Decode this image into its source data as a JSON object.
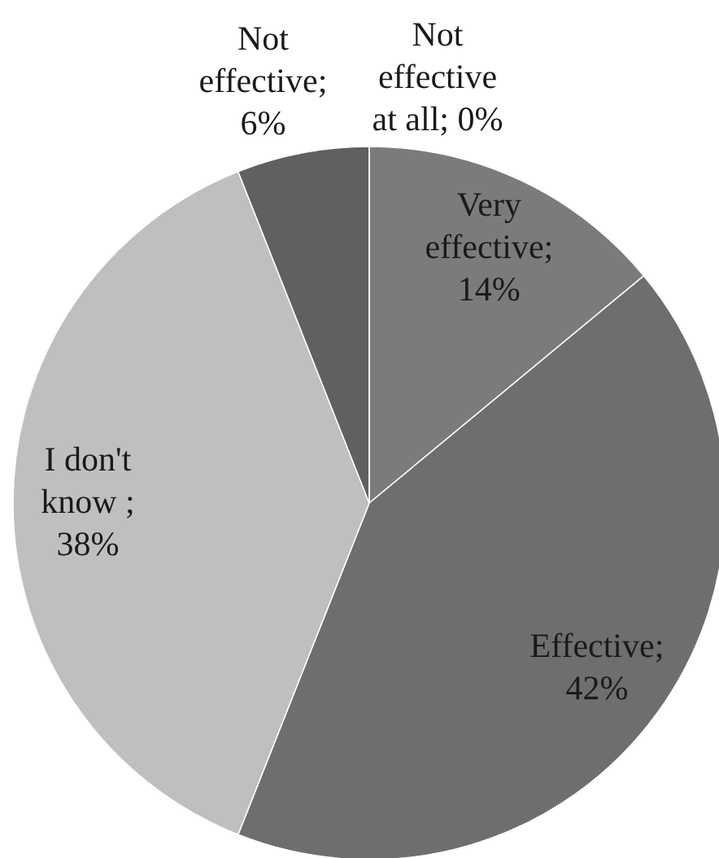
{
  "chart_data": {
    "type": "pie",
    "categories": [
      null,
      null,
      null,
      null,
      null
    ],
    "values": [
      14,
      42,
      38,
      6,
      0
    ],
    "colors": [
      "#7b7b7b",
      "#6e6e6e",
      "#bfbfbf",
      "#606060",
      "#8f8f8f"
    ],
    "value_labels": [
      "Very effective; 14%",
      "Effective; 42%",
      "I don't know ; 38%",
      "Not effective; 6%",
      "Not effective at all; 0%"
    ]
  }
}
